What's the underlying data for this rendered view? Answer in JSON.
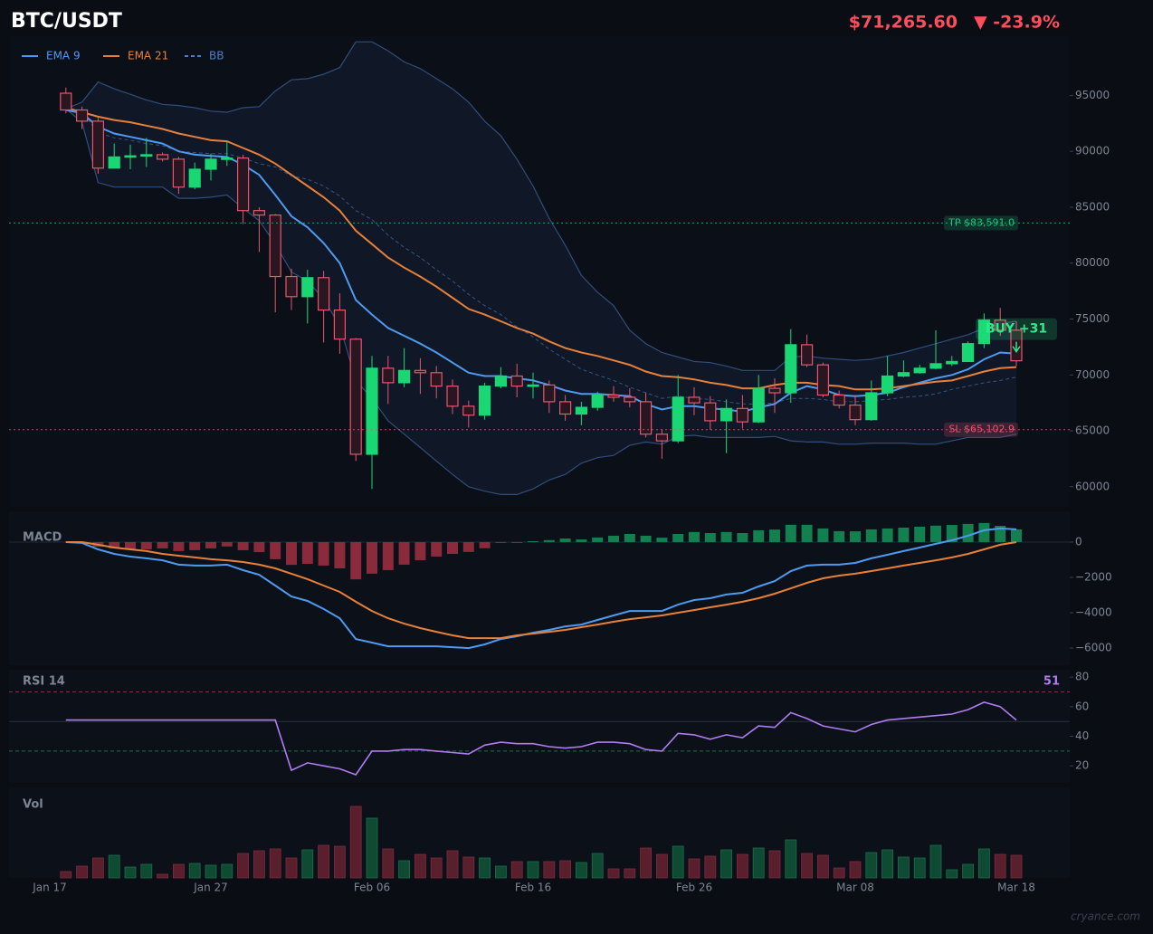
{
  "chart_data": [
    {
      "type": "candlestick",
      "title": "BTC/USDT",
      "price_label": "$71,265.60",
      "change_label": "▼ -23.9%",
      "up_color": "#19d873",
      "down_color": "#e8566c",
      "open": [
        null,
        95200,
        93700,
        92700,
        88500,
        89500,
        89600,
        89700,
        89300,
        86800,
        88400,
        89300,
        89400,
        84700,
        84300,
        78800,
        77000,
        78700,
        75800,
        73200,
        62900,
        70600,
        69300,
        70400,
        70200,
        69000,
        67200,
        66400,
        69000,
        69900,
        69000,
        69100,
        67600,
        66500,
        67100,
        68200,
        68000,
        67600,
        64700,
        64100,
        68000,
        67500,
        65900,
        67000,
        65800,
        68800,
        68400,
        72700,
        70900,
        68200,
        67300,
        66000,
        68400,
        69900,
        70200,
        70600,
        71000,
        71200,
        72800,
        74900,
        74000
      ],
      "high": [
        null,
        95700,
        94000,
        93000,
        90700,
        90600,
        91200,
        89900,
        89500,
        89000,
        89800,
        90900,
        89700,
        85000,
        84400,
        79500,
        79400,
        79300,
        77300,
        73300,
        71700,
        71700,
        72400,
        71500,
        70800,
        69600,
        67700,
        69300,
        70700,
        71000,
        70200,
        69500,
        68200,
        67600,
        68500,
        69000,
        68800,
        68400,
        65100,
        70000,
        68900,
        68100,
        67800,
        68200,
        70000,
        69700,
        74100,
        73600,
        71100,
        68600,
        68200,
        69500,
        71700,
        71300,
        70900,
        74000,
        71700,
        73000,
        75500,
        76000,
        74800
      ],
      "low": [
        null,
        93400,
        92000,
        88000,
        88500,
        88400,
        88600,
        89100,
        86200,
        86600,
        87400,
        88700,
        83500,
        81000,
        75600,
        75800,
        74600,
        72900,
        71900,
        62300,
        59800,
        67400,
        68900,
        68300,
        67900,
        66500,
        65300,
        66000,
        68800,
        68000,
        67900,
        66600,
        65900,
        65500,
        66800,
        67600,
        67100,
        64400,
        62500,
        63900,
        66400,
        65100,
        63000,
        65200,
        65700,
        66600,
        67500,
        70700,
        68000,
        67000,
        65500,
        65900,
        68100,
        69800,
        70100,
        70500,
        70800,
        71200,
        72400,
        73500,
        70800
      ],
      "close": [
        null,
        93700,
        92700,
        88500,
        89500,
        89600,
        89700,
        89300,
        86800,
        88400,
        89300,
        89400,
        84700,
        84300,
        78800,
        77000,
        78700,
        75800,
        73200,
        62900,
        70600,
        69300,
        70400,
        70200,
        69000,
        67200,
        66400,
        69000,
        69900,
        69000,
        69100,
        67600,
        66500,
        67100,
        68200,
        68000,
        67600,
        64700,
        64100,
        68000,
        67500,
        65900,
        67000,
        65800,
        68800,
        68400,
        72700,
        70900,
        68200,
        67300,
        66000,
        68400,
        69900,
        70200,
        70600,
        71000,
        71200,
        72800,
        74900,
        74000,
        71265.6
      ],
      "series": [
        {
          "name": "EMA 9",
          "color": "#4e9af1",
          "values": [
            null,
            93700,
            93400,
            92200,
            91600,
            91300,
            91000,
            90700,
            90000,
            89700,
            89600,
            89500,
            88800,
            87900,
            86100,
            84200,
            83200,
            81800,
            80000,
            76700,
            75400,
            74200,
            73500,
            72800,
            72000,
            71100,
            70200,
            69900,
            69900,
            69700,
            69500,
            69100,
            68600,
            68300,
            68300,
            68200,
            68100,
            67400,
            66900,
            67200,
            67200,
            67000,
            66900,
            66700,
            67100,
            67400,
            68400,
            69000,
            68700,
            68200,
            68100,
            68200,
            68400,
            68900,
            69300,
            69700,
            70000,
            70500,
            71400,
            72000,
            71900
          ]
        },
        {
          "name": "EMA 21",
          "color": "#e8803a",
          "values": [
            null,
            93900,
            93500,
            93100,
            92800,
            92600,
            92300,
            92000,
            91600,
            91300,
            91000,
            90900,
            90300,
            89700,
            88900,
            87900,
            86900,
            85900,
            84700,
            82900,
            81700,
            80500,
            79600,
            78800,
            77900,
            76900,
            75900,
            75400,
            74800,
            74200,
            73700,
            73000,
            72400,
            72000,
            71700,
            71300,
            70900,
            70300,
            69900,
            69800,
            69600,
            69300,
            69100,
            68800,
            68800,
            69100,
            69300,
            69300,
            69100,
            69000,
            68700,
            68700,
            68800,
            69000,
            69200,
            69400,
            69500,
            69900,
            70300,
            70600,
            70700
          ]
        },
        {
          "name": "BB",
          "color": "#4f7fc8",
          "style": "dashed",
          "values": [
            null,
            93800,
            93500,
            91700,
            91200,
            91000,
            90700,
            90500,
            90000,
            89900,
            89800,
            89800,
            89400,
            88900,
            88600,
            87800,
            87500,
            86900,
            86000,
            84700,
            83900,
            82500,
            81400,
            80500,
            79400,
            78400,
            77200,
            76200,
            75400,
            74300,
            73400,
            72300,
            71400,
            70500,
            70000,
            69500,
            68900,
            68400,
            67900,
            68100,
            67900,
            67800,
            67600,
            67400,
            67400,
            67500,
            67900,
            67900,
            67800,
            67600,
            67600,
            67700,
            67800,
            68000,
            68100,
            68300,
            68700,
            69000,
            69300,
            69500,
            69800
          ],
          "upper": [
            null,
            93800,
            94400,
            96200,
            95600,
            95100,
            94600,
            94200,
            94100,
            93900,
            93600,
            93500,
            93900,
            94000,
            95400,
            96400,
            96500,
            96900,
            97500,
            99800,
            99800,
            99000,
            98000,
            97400,
            96500,
            95600,
            94400,
            92700,
            91400,
            89300,
            86900,
            84000,
            81600,
            78900,
            77400,
            76200,
            74000,
            72800,
            72000,
            71600,
            71200,
            71100,
            70800,
            70400,
            70400,
            70400,
            71600,
            71700,
            71500,
            71400,
            71300,
            71400,
            71700,
            72000,
            72400,
            72800,
            73200,
            73600,
            74200,
            74600,
            74800
          ],
          "lower": [
            null,
            93800,
            92600,
            87200,
            86800,
            86800,
            86800,
            86800,
            85800,
            85800,
            85900,
            86100,
            84900,
            83800,
            81700,
            79200,
            78400,
            76800,
            74400,
            69500,
            67900,
            65900,
            64700,
            63500,
            62300,
            61100,
            60000,
            59600,
            59300,
            59300,
            59800,
            60600,
            61100,
            62100,
            62600,
            62800,
            63700,
            64000,
            63800,
            64500,
            64600,
            64400,
            64400,
            64400,
            64400,
            64500,
            64100,
            64000,
            64000,
            63800,
            63800,
            63900,
            63900,
            63900,
            63800,
            63800,
            64100,
            64400,
            64400,
            64400,
            64700
          ]
        }
      ],
      "levels": [
        {
          "label": "TP $83,591.0",
          "value": 83591.0,
          "color": "#22c07a"
        },
        {
          "label": "SL $65,102.9",
          "value": 65102.9,
          "color": "#e8566c"
        }
      ],
      "signal": {
        "label": "BUY +31",
        "color": "#2ee88a"
      },
      "ylim": [
        58200,
        100300
      ],
      "yticks": [
        60000,
        65000,
        70000,
        75000,
        80000,
        85000,
        90000,
        95000
      ]
    },
    {
      "type": "macd",
      "title": "MACD",
      "up_color": "#13804f",
      "down_color": "#8b2a3a",
      "histogram": [
        null,
        0,
        -50,
        -260,
        -360,
        -410,
        -410,
        -360,
        -510,
        -460,
        -360,
        -250,
        -460,
        -570,
        -970,
        -1290,
        -1230,
        -1330,
        -1490,
        -2110,
        -1790,
        -1590,
        -1280,
        -1030,
        -820,
        -670,
        -560,
        -350,
        -50,
        -50,
        50,
        110,
        200,
        150,
        260,
        360,
        460,
        360,
        250,
        460,
        570,
        510,
        570,
        510,
        670,
        710,
        980,
        980,
        770,
        620,
        610,
        720,
        770,
        820,
        870,
        930,
        970,
        1030,
        1080,
        920,
        720
      ],
      "series": [
        {
          "color": "#4e9af1",
          "values": [
            null,
            0,
            -50,
            -410,
            -670,
            -820,
            -920,
            -1030,
            -1280,
            -1330,
            -1330,
            -1280,
            -1590,
            -1850,
            -2460,
            -3080,
            -3330,
            -3790,
            -4310,
            -5490,
            -5690,
            -5900,
            -5900,
            -5900,
            -5900,
            -5950,
            -6000,
            -5790,
            -5490,
            -5330,
            -5130,
            -4970,
            -4770,
            -4670,
            -4410,
            -4150,
            -3900,
            -3900,
            -3900,
            -3540,
            -3280,
            -3180,
            -2970,
            -2870,
            -2510,
            -2210,
            -1640,
            -1330,
            -1280,
            -1280,
            -1180,
            -920,
            -720,
            -510,
            -310,
            -100,
            100,
            360,
            670,
            770,
            720
          ]
        },
        {
          "color": "#e8803a",
          "values": [
            null,
            0,
            0,
            -150,
            -310,
            -410,
            -510,
            -670,
            -770,
            -870,
            -970,
            -1030,
            -1130,
            -1280,
            -1490,
            -1790,
            -2100,
            -2460,
            -2820,
            -3380,
            -3900,
            -4310,
            -4620,
            -4870,
            -5080,
            -5280,
            -5440,
            -5440,
            -5440,
            -5280,
            -5180,
            -5080,
            -4970,
            -4820,
            -4670,
            -4510,
            -4360,
            -4260,
            -4150,
            -4000,
            -3850,
            -3690,
            -3540,
            -3380,
            -3180,
            -2920,
            -2620,
            -2310,
            -2050,
            -1900,
            -1790,
            -1640,
            -1490,
            -1330,
            -1180,
            -1030,
            -870,
            -670,
            -410,
            -150,
            0
          ]
        }
      ],
      "ylim": [
        -6970,
        1740
      ],
      "yticks": [
        {
          "value": -6000,
          "label": "−6000"
        },
        {
          "value": -4000,
          "label": "−4000"
        },
        {
          "value": -2000,
          "label": "−2000"
        },
        0
      ]
    },
    {
      "type": "line",
      "title": "RSI 14",
      "color": "#b07cf0",
      "values": [
        null,
        51,
        51,
        51,
        51,
        51,
        51,
        51,
        51,
        51,
        51,
        51,
        51,
        51,
        51,
        17,
        22,
        20,
        18,
        14,
        30,
        30,
        31,
        31,
        30,
        29,
        28,
        34,
        36,
        35,
        35,
        33,
        32,
        33,
        36,
        36,
        35,
        31,
        30,
        42,
        41,
        38,
        41,
        39,
        47,
        46,
        56,
        52,
        47,
        45,
        43,
        48,
        51,
        52,
        53,
        54,
        55,
        58,
        63,
        60,
        51
      ],
      "hlines": [
        {
          "value": 70,
          "color": "#7a2f45",
          "style": "dashed"
        },
        {
          "value": 50,
          "color": "#2a3040",
          "style": "solid"
        },
        {
          "value": 30,
          "color": "#1f6e4c",
          "style": "dashed"
        }
      ],
      "ylim": [
        8.5,
        85
      ],
      "yticks": [
        20,
        40,
        60,
        80
      ]
    },
    {
      "type": "bar",
      "title": "Vol",
      "up_color": "#0f4a33",
      "down_color": "#5a1f2c",
      "categories": [
        "Jan 17",
        null,
        null,
        null,
        null,
        null,
        null,
        null,
        null,
        null,
        "Jan 27",
        null,
        null,
        null,
        null,
        null,
        null,
        null,
        null,
        null,
        "Feb 06",
        null,
        null,
        null,
        null,
        null,
        null,
        null,
        null,
        null,
        "Feb 16",
        null,
        null,
        null,
        null,
        null,
        null,
        null,
        null,
        null,
        "Feb 26",
        null,
        null,
        null,
        null,
        null,
        null,
        null,
        null,
        null,
        "Mar 08",
        null,
        null,
        null,
        null,
        null,
        null,
        null,
        null,
        null,
        "Mar 18"
      ],
      "values": [
        null,
        7,
        13,
        22,
        25,
        12,
        15,
        4,
        15,
        16,
        14,
        15,
        27,
        30,
        32,
        22,
        31,
        36,
        35,
        79,
        66,
        32,
        19,
        26,
        22,
        30,
        23,
        22,
        13,
        18,
        18,
        18,
        19,
        17,
        27,
        10,
        10,
        33,
        26,
        35,
        21,
        24,
        31,
        26,
        33,
        30,
        42,
        27,
        25,
        11,
        18,
        28,
        31,
        23,
        22,
        36,
        9,
        15,
        32,
        26,
        25
      ],
      "ylim": [
        0,
        100
      ]
    }
  ],
  "watermark": "cryance.com"
}
